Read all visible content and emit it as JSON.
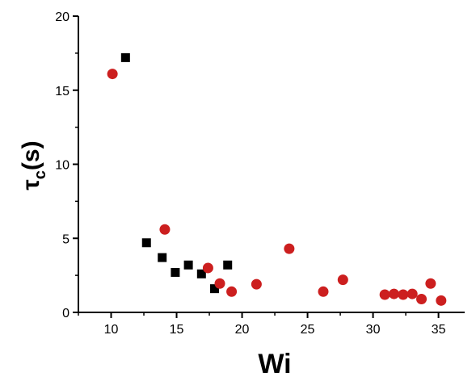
{
  "chart_data": {
    "type": "scatter",
    "xlabel": "Wi",
    "ylabel": {
      "symbol": "τ",
      "subscript": "c",
      "unit": "(s)"
    },
    "xlim": [
      7.5,
      37
    ],
    "ylim": [
      0,
      20
    ],
    "xticks": [
      10,
      15,
      20,
      25,
      30,
      35
    ],
    "yticks": [
      0,
      5,
      10,
      15,
      20
    ],
    "grid": false,
    "legend": "none",
    "series": [
      {
        "marker": "square",
        "color": "#000000",
        "points": [
          {
            "x": 11.1,
            "y": 17.2
          },
          {
            "x": 12.7,
            "y": 4.7
          },
          {
            "x": 13.9,
            "y": 3.7
          },
          {
            "x": 14.9,
            "y": 2.7
          },
          {
            "x": 15.9,
            "y": 3.2
          },
          {
            "x": 16.9,
            "y": 2.6
          },
          {
            "x": 17.9,
            "y": 1.6
          },
          {
            "x": 18.9,
            "y": 3.2
          }
        ]
      },
      {
        "marker": "circle",
        "color": "#cc1f1f",
        "points": [
          {
            "x": 10.1,
            "y": 16.1
          },
          {
            "x": 14.1,
            "y": 5.6
          },
          {
            "x": 17.4,
            "y": 3.0
          },
          {
            "x": 18.3,
            "y": 1.95
          },
          {
            "x": 19.2,
            "y": 1.4
          },
          {
            "x": 21.1,
            "y": 1.9
          },
          {
            "x": 23.6,
            "y": 4.3
          },
          {
            "x": 26.2,
            "y": 1.4
          },
          {
            "x": 27.7,
            "y": 2.2
          },
          {
            "x": 30.9,
            "y": 1.2
          },
          {
            "x": 31.6,
            "y": 1.25
          },
          {
            "x": 32.3,
            "y": 1.2
          },
          {
            "x": 33.0,
            "y": 1.25
          },
          {
            "x": 33.7,
            "y": 0.9
          },
          {
            "x": 34.4,
            "y": 1.95
          },
          {
            "x": 35.2,
            "y": 0.8
          }
        ]
      }
    ]
  }
}
